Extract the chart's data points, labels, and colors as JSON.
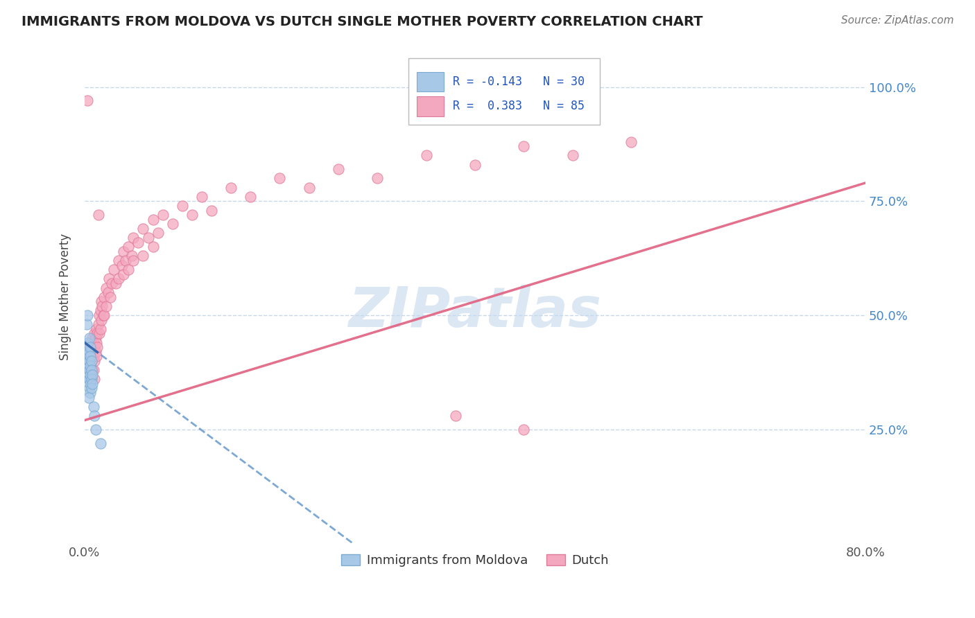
{
  "title": "IMMIGRANTS FROM MOLDOVA VS DUTCH SINGLE MOTHER POVERTY CORRELATION CHART",
  "source": "Source: ZipAtlas.com",
  "ylabel": "Single Mother Poverty",
  "ytick_vals": [
    0.25,
    0.5,
    0.75,
    1.0
  ],
  "xrange": [
    0.0,
    0.8
  ],
  "yrange": [
    0.0,
    1.08
  ],
  "watermark": "ZIPatlas",
  "moldova_color": "#a8c8e8",
  "dutch_color": "#f4a8c0",
  "moldova_edge": "#7aaad0",
  "dutch_edge": "#e07898",
  "trendline_moldova_color": "#6699cc",
  "trendline_dutch_color": "#e06080",
  "bg_color": "#ffffff",
  "grid_color": "#c8d8e8",
  "moldova_scatter": [
    [
      0.002,
      0.48
    ],
    [
      0.003,
      0.44
    ],
    [
      0.003,
      0.42
    ],
    [
      0.004,
      0.4
    ],
    [
      0.004,
      0.38
    ],
    [
      0.004,
      0.36
    ],
    [
      0.005,
      0.45
    ],
    [
      0.005,
      0.42
    ],
    [
      0.005,
      0.4
    ],
    [
      0.005,
      0.38
    ],
    [
      0.005,
      0.36
    ],
    [
      0.005,
      0.34
    ],
    [
      0.006,
      0.43
    ],
    [
      0.006,
      0.41
    ],
    [
      0.006,
      0.39
    ],
    [
      0.006,
      0.37
    ],
    [
      0.006,
      0.35
    ],
    [
      0.006,
      0.33
    ],
    [
      0.007,
      0.4
    ],
    [
      0.007,
      0.38
    ],
    [
      0.007,
      0.36
    ],
    [
      0.007,
      0.34
    ],
    [
      0.008,
      0.37
    ],
    [
      0.008,
      0.35
    ],
    [
      0.009,
      0.3
    ],
    [
      0.01,
      0.28
    ],
    [
      0.011,
      0.25
    ],
    [
      0.016,
      0.22
    ],
    [
      0.003,
      0.5
    ],
    [
      0.004,
      0.32
    ]
  ],
  "dutch_scatter": [
    [
      0.003,
      0.97
    ],
    [
      0.014,
      0.72
    ],
    [
      0.003,
      0.43
    ],
    [
      0.004,
      0.4
    ],
    [
      0.005,
      0.42
    ],
    [
      0.005,
      0.38
    ],
    [
      0.006,
      0.44
    ],
    [
      0.006,
      0.41
    ],
    [
      0.006,
      0.38
    ],
    [
      0.007,
      0.43
    ],
    [
      0.007,
      0.4
    ],
    [
      0.007,
      0.37
    ],
    [
      0.008,
      0.45
    ],
    [
      0.008,
      0.42
    ],
    [
      0.008,
      0.38
    ],
    [
      0.009,
      0.44
    ],
    [
      0.009,
      0.41
    ],
    [
      0.009,
      0.38
    ],
    [
      0.01,
      0.46
    ],
    [
      0.01,
      0.43
    ],
    [
      0.01,
      0.4
    ],
    [
      0.01,
      0.36
    ],
    [
      0.011,
      0.45
    ],
    [
      0.011,
      0.42
    ],
    [
      0.012,
      0.47
    ],
    [
      0.012,
      0.44
    ],
    [
      0.012,
      0.41
    ],
    [
      0.013,
      0.46
    ],
    [
      0.013,
      0.43
    ],
    [
      0.014,
      0.48
    ],
    [
      0.015,
      0.5
    ],
    [
      0.015,
      0.46
    ],
    [
      0.016,
      0.51
    ],
    [
      0.016,
      0.47
    ],
    [
      0.017,
      0.53
    ],
    [
      0.017,
      0.49
    ],
    [
      0.018,
      0.52
    ],
    [
      0.019,
      0.5
    ],
    [
      0.02,
      0.54
    ],
    [
      0.02,
      0.5
    ],
    [
      0.022,
      0.56
    ],
    [
      0.022,
      0.52
    ],
    [
      0.024,
      0.55
    ],
    [
      0.025,
      0.58
    ],
    [
      0.026,
      0.54
    ],
    [
      0.028,
      0.57
    ],
    [
      0.03,
      0.6
    ],
    [
      0.032,
      0.57
    ],
    [
      0.035,
      0.62
    ],
    [
      0.035,
      0.58
    ],
    [
      0.038,
      0.61
    ],
    [
      0.04,
      0.64
    ],
    [
      0.04,
      0.59
    ],
    [
      0.042,
      0.62
    ],
    [
      0.045,
      0.65
    ],
    [
      0.045,
      0.6
    ],
    [
      0.048,
      0.63
    ],
    [
      0.05,
      0.67
    ],
    [
      0.05,
      0.62
    ],
    [
      0.055,
      0.66
    ],
    [
      0.06,
      0.69
    ],
    [
      0.06,
      0.63
    ],
    [
      0.065,
      0.67
    ],
    [
      0.07,
      0.71
    ],
    [
      0.07,
      0.65
    ],
    [
      0.075,
      0.68
    ],
    [
      0.08,
      0.72
    ],
    [
      0.09,
      0.7
    ],
    [
      0.1,
      0.74
    ],
    [
      0.11,
      0.72
    ],
    [
      0.12,
      0.76
    ],
    [
      0.13,
      0.73
    ],
    [
      0.15,
      0.78
    ],
    [
      0.17,
      0.76
    ],
    [
      0.2,
      0.8
    ],
    [
      0.23,
      0.78
    ],
    [
      0.26,
      0.82
    ],
    [
      0.3,
      0.8
    ],
    [
      0.35,
      0.85
    ],
    [
      0.4,
      0.83
    ],
    [
      0.45,
      0.87
    ],
    [
      0.5,
      0.85
    ],
    [
      0.56,
      0.88
    ],
    [
      0.38,
      0.28
    ],
    [
      0.45,
      0.25
    ]
  ],
  "ytick_labels": [
    "25.0%",
    "50.0%",
    "75.0%",
    "100.0%"
  ],
  "tick_color": "#4488cc"
}
